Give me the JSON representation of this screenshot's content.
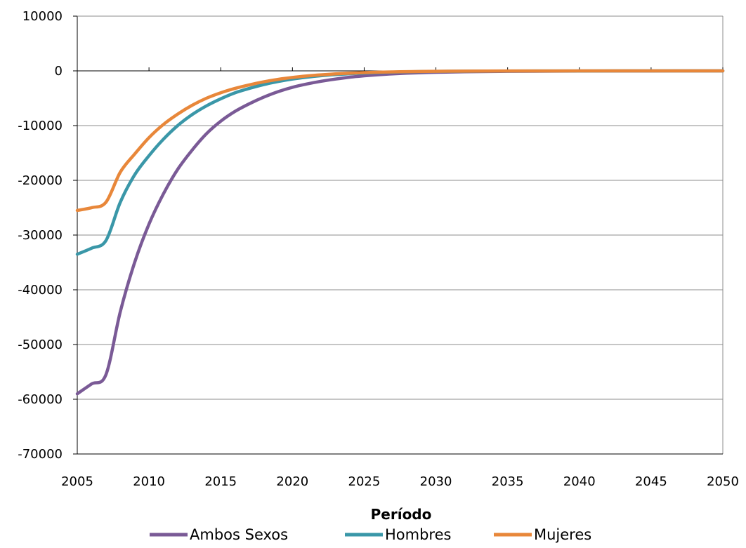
{
  "chart_data": {
    "type": "line",
    "xlabel": "Período",
    "ylabel": "",
    "xlim": [
      2005,
      2050
    ],
    "ylim": [
      -70000,
      10000
    ],
    "x_ticks": [
      2005,
      2010,
      2015,
      2020,
      2025,
      2030,
      2035,
      2040,
      2045,
      2050
    ],
    "y_ticks": [
      10000,
      0,
      -10000,
      -20000,
      -30000,
      -40000,
      -50000,
      -60000,
      -70000
    ],
    "grid": "horizontal",
    "legend_position": "bottom",
    "series": [
      {
        "name": "Ambos Sexos",
        "color": "#7a5a96",
        "x": [
          2005,
          2006,
          2007,
          2008,
          2009,
          2010,
          2011,
          2012,
          2013,
          2014,
          2015,
          2016,
          2017,
          2018,
          2019,
          2020,
          2021,
          2022,
          2023,
          2024,
          2025,
          2026,
          2027,
          2028,
          2029,
          2030,
          2032,
          2035,
          2040,
          2045,
          2050
        ],
        "values": [
          -59000,
          -57200,
          -55500,
          -44000,
          -35000,
          -28000,
          -22500,
          -18000,
          -14500,
          -11500,
          -9200,
          -7400,
          -6000,
          -4800,
          -3800,
          -3000,
          -2400,
          -1900,
          -1500,
          -1150,
          -900,
          -700,
          -540,
          -420,
          -330,
          -260,
          -160,
          -80,
          -30,
          -10,
          0
        ]
      },
      {
        "name": "Hombres",
        "color": "#3a97a8",
        "x": [
          2005,
          2006,
          2007,
          2008,
          2009,
          2010,
          2011,
          2012,
          2013,
          2014,
          2015,
          2016,
          2017,
          2018,
          2019,
          2020,
          2021,
          2022,
          2023,
          2024,
          2025,
          2026,
          2027,
          2028,
          2029,
          2030,
          2032,
          2035,
          2040,
          2045,
          2050
        ],
        "values": [
          -33500,
          -32400,
          -31000,
          -24000,
          -19000,
          -15500,
          -12500,
          -10000,
          -8000,
          -6400,
          -5100,
          -4000,
          -3200,
          -2500,
          -1950,
          -1500,
          -1150,
          -880,
          -680,
          -520,
          -400,
          -300,
          -230,
          -175,
          -130,
          -100,
          -60,
          -30,
          -10,
          -5,
          0
        ]
      },
      {
        "name": "Mujeres",
        "color": "#e8873a",
        "x": [
          2005,
          2006,
          2007,
          2008,
          2009,
          2010,
          2011,
          2012,
          2013,
          2014,
          2015,
          2016,
          2017,
          2018,
          2019,
          2020,
          2021,
          2022,
          2023,
          2024,
          2025,
          2026,
          2027,
          2028,
          2029,
          2030,
          2032,
          2035,
          2040,
          2045,
          2050
        ],
        "values": [
          -25500,
          -25000,
          -24000,
          -18500,
          -15200,
          -12200,
          -9800,
          -7900,
          -6300,
          -5000,
          -4000,
          -3200,
          -2550,
          -2000,
          -1550,
          -1200,
          -930,
          -720,
          -550,
          -420,
          -320,
          -245,
          -185,
          -140,
          -105,
          -80,
          -45,
          -20,
          -8,
          -3,
          0
        ]
      }
    ]
  }
}
